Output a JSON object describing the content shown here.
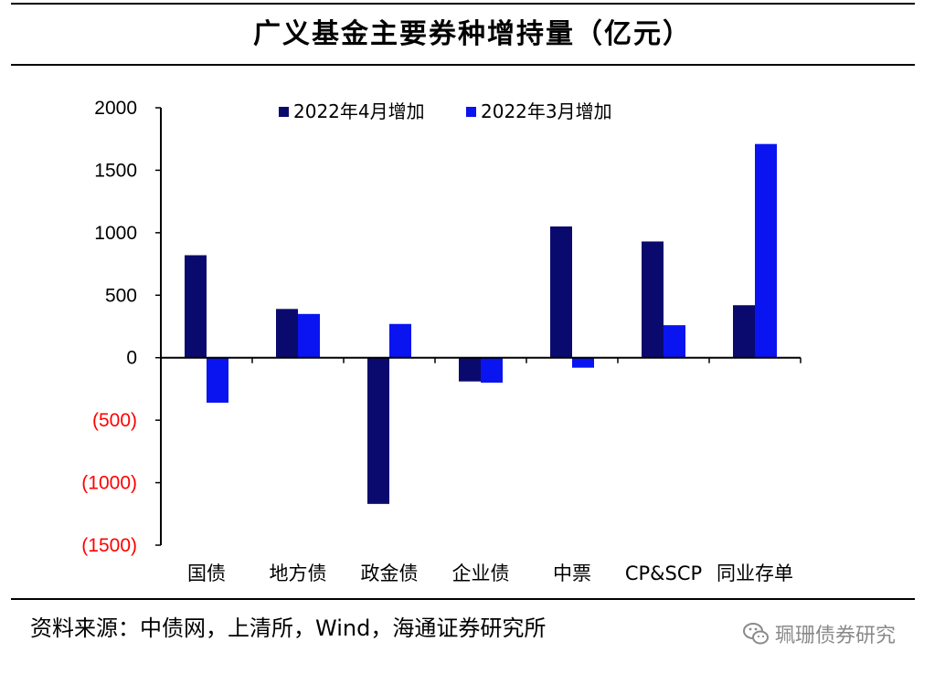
{
  "title": "广义基金主要券种增持量（亿元）",
  "source": "资料来源：中债网，上清所，Wind，海通证券研究所",
  "watermark": {
    "text": "珮珊债券研究",
    "icon": "wechat-icon"
  },
  "colors": {
    "series1": "#0a0a6e",
    "series2": "#0a14f0",
    "negativeTick": "#ff0000",
    "axis": "#000000"
  },
  "chart_data": {
    "type": "bar",
    "title": "广义基金主要券种增持量（亿元）",
    "xlabel": "",
    "ylabel": "",
    "ylim": [
      -1500,
      2000
    ],
    "yticks": [
      2000,
      1500,
      1000,
      500,
      0,
      -500,
      -1000,
      -1500
    ],
    "ytick_labels": [
      "2000",
      "1500",
      "1000",
      "500",
      "0",
      "(500)",
      "(1000)",
      "(1500)"
    ],
    "categories": [
      "国债",
      "地方债",
      "政金债",
      "企业债",
      "中票",
      "CP&SCP",
      "同业存单"
    ],
    "legend_position": "top",
    "series": [
      {
        "name": "2022年4月增加",
        "values": [
          820,
          390,
          -1170,
          -190,
          1050,
          930,
          420
        ]
      },
      {
        "name": "2022年3月增加",
        "values": [
          -360,
          350,
          270,
          -200,
          -80,
          260,
          1710
        ]
      }
    ]
  }
}
